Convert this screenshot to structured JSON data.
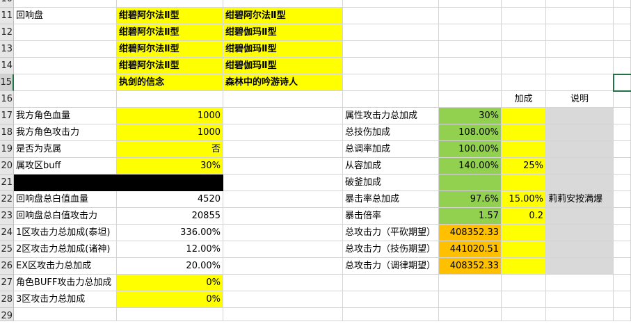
{
  "colors": {
    "yellow": "#ffff00",
    "green": "#92d050",
    "orange": "#ffc000",
    "gray": "#d9d9d9",
    "black": "#000000",
    "selection": "#217346"
  },
  "selected_cell": "H15",
  "rows": [
    {
      "n": "10",
      "cells": {}
    },
    {
      "n": "11",
      "cells": {
        "A": {
          "v": "回响盘"
        },
        "B": {
          "v": "绀碧阿尔法Ⅱ型",
          "bg": "yellow",
          "b": true
        },
        "C": {
          "v": "绀碧阿尔法Ⅱ型",
          "bg": "yellow",
          "b": true
        }
      }
    },
    {
      "n": "12",
      "cells": {
        "B": {
          "v": "绀碧阿尔法Ⅱ型",
          "bg": "yellow",
          "b": true
        },
        "C": {
          "v": "绀碧伽玛Ⅱ型",
          "bg": "yellow",
          "b": true
        }
      }
    },
    {
      "n": "13",
      "cells": {
        "B": {
          "v": "绀碧阿尔法Ⅱ型",
          "bg": "yellow",
          "b": true
        },
        "C": {
          "v": "绀碧伽玛Ⅱ型",
          "bg": "yellow",
          "b": true
        }
      }
    },
    {
      "n": "14",
      "cells": {
        "B": {
          "v": "绀碧阿尔法Ⅱ型",
          "bg": "yellow",
          "b": true
        },
        "C": {
          "v": "绀碧伽玛Ⅱ型",
          "bg": "yellow",
          "b": true
        }
      }
    },
    {
      "n": "15",
      "cells": {
        "B": {
          "v": "执剑的信念",
          "bg": "yellow",
          "b": true
        },
        "C": {
          "v": "森林中的吟游诗人",
          "bg": "yellow",
          "b": true
        }
      }
    },
    {
      "n": "16",
      "cells": {
        "F": {
          "v": "加成",
          "al": "c"
        },
        "G": {
          "v": "说明",
          "al": "c"
        }
      }
    },
    {
      "n": "17",
      "cells": {
        "A": {
          "v": "我方角色血量"
        },
        "B": {
          "v": "1000",
          "bg": "yellow",
          "al": "r"
        },
        "D": {
          "v": "属性攻击力总加成"
        },
        "E": {
          "v": "30%",
          "bg": "green",
          "al": "r"
        },
        "F": {
          "v": "",
          "bg": "yellow"
        },
        "G": {
          "v": "",
          "bg": "gray"
        }
      }
    },
    {
      "n": "18",
      "cells": {
        "A": {
          "v": "我方角色攻击力"
        },
        "B": {
          "v": "1000",
          "bg": "yellow",
          "al": "r"
        },
        "D": {
          "v": "总技伤加成"
        },
        "E": {
          "v": "108.00%",
          "bg": "green",
          "al": "r"
        },
        "F": {
          "v": "",
          "bg": "yellow"
        },
        "G": {
          "v": "",
          "bg": "gray"
        }
      }
    },
    {
      "n": "19",
      "cells": {
        "A": {
          "v": "是否为克属"
        },
        "B": {
          "v": "否",
          "bg": "yellow",
          "al": "r"
        },
        "D": {
          "v": "总调率加成"
        },
        "E": {
          "v": "100.00%",
          "bg": "green",
          "al": "r"
        },
        "F": {
          "v": "",
          "bg": "yellow"
        },
        "G": {
          "v": "",
          "bg": "gray"
        }
      }
    },
    {
      "n": "20",
      "cells": {
        "A": {
          "v": "属攻区buff"
        },
        "B": {
          "v": "30%",
          "bg": "yellow",
          "al": "r"
        },
        "D": {
          "v": "从容加成"
        },
        "E": {
          "v": "140.00%",
          "bg": "green",
          "al": "r"
        },
        "F": {
          "v": "25%",
          "bg": "yellow",
          "al": "r"
        },
        "G": {
          "v": "",
          "bg": "gray"
        }
      }
    },
    {
      "n": "21",
      "cells": {
        "A": {
          "v": "",
          "bg": "black"
        },
        "B": {
          "v": "",
          "bg": "black"
        },
        "D": {
          "v": "破釜加成"
        },
        "E": {
          "v": "",
          "bg": "green"
        },
        "F": {
          "v": "",
          "bg": "yellow"
        },
        "G": {
          "v": "",
          "bg": "gray"
        }
      }
    },
    {
      "n": "22",
      "cells": {
        "A": {
          "v": "回响盘总白值血量"
        },
        "B": {
          "v": "4520",
          "al": "r"
        },
        "D": {
          "v": "暴击率总加成"
        },
        "E": {
          "v": "97.6%",
          "bg": "green",
          "al": "r"
        },
        "F": {
          "v": "15.00%",
          "bg": "yellow",
          "al": "r"
        },
        "G": {
          "v": "莉莉安按满爆",
          "bg": "gray"
        }
      }
    },
    {
      "n": "23",
      "cells": {
        "A": {
          "v": "回响盘总白值攻击力"
        },
        "B": {
          "v": "20855",
          "al": "r"
        },
        "D": {
          "v": "暴击倍率"
        },
        "E": {
          "v": "1.57",
          "bg": "green",
          "al": "r"
        },
        "F": {
          "v": "0.2",
          "bg": "yellow",
          "al": "r"
        },
        "G": {
          "v": "",
          "bg": "gray"
        }
      }
    },
    {
      "n": "24",
      "cells": {
        "A": {
          "v": "1区攻击力总加成(泰坦)"
        },
        "B": {
          "v": "336.00%",
          "al": "r"
        },
        "D": {
          "v": "总攻击力（平砍期望）"
        },
        "E": {
          "v": "408352.33",
          "bg": "orange",
          "al": "r"
        },
        "F": {
          "v": "",
          "bg": "yellow"
        },
        "G": {
          "v": "",
          "bg": "gray"
        }
      }
    },
    {
      "n": "25",
      "cells": {
        "A": {
          "v": "2区攻击力总加成(诸神)"
        },
        "B": {
          "v": "12.00%",
          "al": "r"
        },
        "D": {
          "v": "总攻击力（技伤期望）"
        },
        "E": {
          "v": "441020.51",
          "bg": "orange",
          "al": "r"
        },
        "F": {
          "v": "",
          "bg": "yellow"
        },
        "G": {
          "v": "",
          "bg": "gray"
        }
      }
    },
    {
      "n": "26",
      "cells": {
        "A": {
          "v": "EX区攻击力总加成"
        },
        "B": {
          "v": "20.00%",
          "al": "r"
        },
        "D": {
          "v": "总攻击力（调律期望）"
        },
        "E": {
          "v": "408352.33",
          "bg": "orange",
          "al": "r"
        },
        "F": {
          "v": "",
          "bg": "yellow"
        },
        "G": {
          "v": "",
          "bg": "gray"
        }
      }
    },
    {
      "n": "27",
      "cells": {
        "A": {
          "v": "角色BUFF攻击力总加成"
        },
        "B": {
          "v": "0%",
          "bg": "yellow",
          "al": "r"
        }
      }
    },
    {
      "n": "28",
      "cells": {
        "A": {
          "v": "3区攻击力总加成"
        },
        "B": {
          "v": "0%",
          "bg": "yellow",
          "al": "r"
        }
      }
    },
    {
      "n": "29",
      "cells": {}
    }
  ]
}
